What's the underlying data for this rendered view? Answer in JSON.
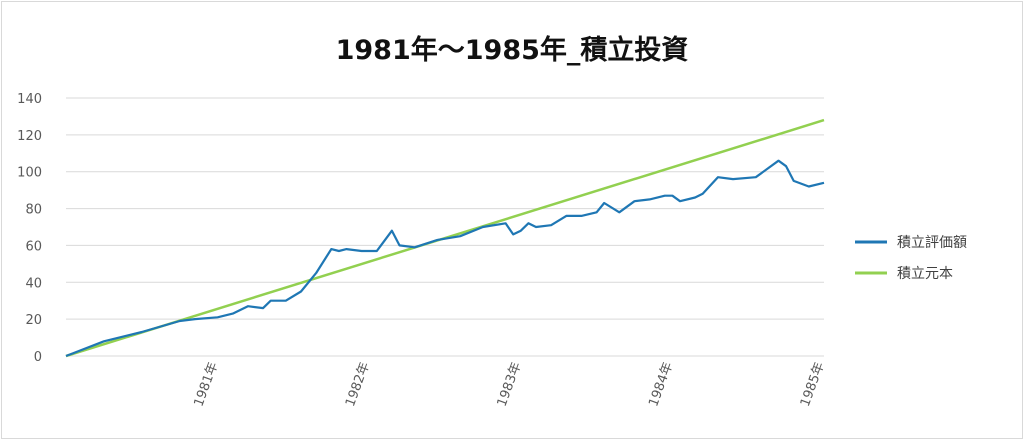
{
  "chart_data": {
    "type": "line",
    "title": "1981年～1985年_積立投資",
    "xlabel": "",
    "ylabel": "",
    "x_ticks": [
      "1981年",
      "1982年",
      "1983年",
      "1984年",
      "1985年"
    ],
    "x_range": [
      1980,
      1985
    ],
    "ylim": [
      0,
      140
    ],
    "y_ticks": [
      0,
      20,
      40,
      60,
      80,
      100,
      120,
      140
    ],
    "grid": "horizontal",
    "legend_position": "right",
    "series": [
      {
        "name": "積立評価額",
        "color": "#1f77b4",
        "x": [
          1980.0,
          1980.25,
          1980.5,
          1980.75,
          1980.85,
          1981.0,
          1981.1,
          1981.2,
          1981.3,
          1981.35,
          1981.45,
          1981.55,
          1981.65,
          1981.75,
          1981.8,
          1981.85,
          1981.95,
          1982.05,
          1982.15,
          1982.2,
          1982.3,
          1982.45,
          1982.6,
          1982.75,
          1982.9,
          1982.95,
          1983.0,
          1983.05,
          1983.1,
          1983.2,
          1983.3,
          1983.4,
          1983.5,
          1983.55,
          1983.65,
          1983.75,
          1983.85,
          1983.95,
          1984.0,
          1984.05,
          1984.15,
          1984.2,
          1984.3,
          1984.4,
          1984.55,
          1984.7,
          1984.75,
          1984.8,
          1984.9,
          1985.0
        ],
        "y": [
          0,
          8,
          13,
          19,
          20,
          21,
          23,
          27,
          26,
          30,
          30,
          35,
          45,
          58,
          57,
          58,
          57,
          57,
          68,
          60,
          59,
          63,
          65,
          70,
          72,
          66,
          68,
          72,
          70,
          71,
          76,
          76,
          78,
          83,
          78,
          84,
          85,
          87,
          87,
          84,
          86,
          88,
          97,
          96,
          97,
          106,
          103,
          95,
          92,
          94
        ]
      },
      {
        "name": "積立元本",
        "color": "#92d050",
        "x": [
          1980.0,
          1985.0
        ],
        "y": [
          0,
          128
        ]
      }
    ]
  }
}
